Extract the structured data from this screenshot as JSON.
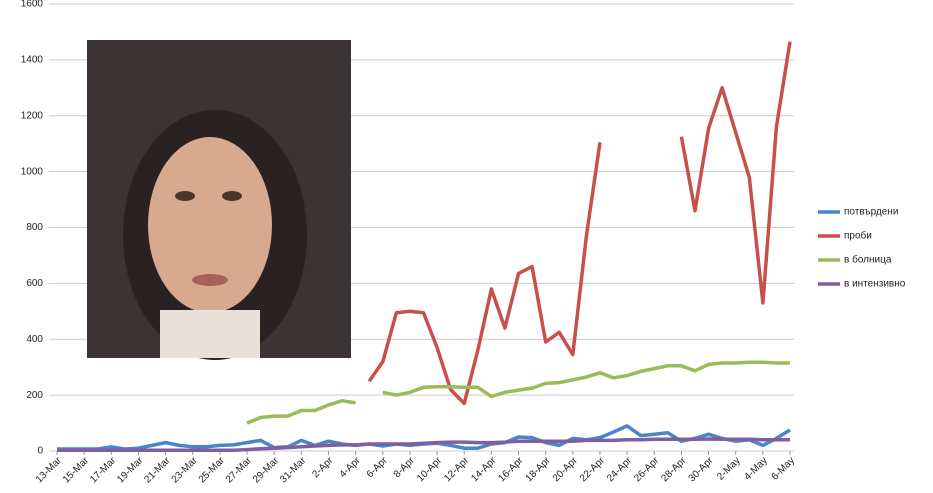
{
  "chart_data": {
    "type": "line",
    "categories": [
      "13-Mar",
      null,
      "15-Mar",
      null,
      "17-Mar",
      null,
      "19-Mar",
      null,
      "21-Mar",
      null,
      "23-Mar",
      null,
      "25-Mar",
      null,
      "27-Mar",
      null,
      "29-Mar",
      null,
      "31-Mar",
      null,
      "2-Apr",
      null,
      "4-Apr",
      null,
      "6-Apr",
      null,
      "8-Apr",
      null,
      "10-Apr",
      null,
      "12-Apr",
      null,
      "14-Apr",
      null,
      "16-Apr",
      null,
      "18-Apr",
      null,
      "20-Apr",
      null,
      "22-Apr",
      null,
      "24-Apr",
      null,
      "26-Apr",
      null,
      "28-Apr",
      null,
      "30-Apr",
      null,
      "2-May",
      null,
      "4-May",
      null,
      "6-May"
    ],
    "series": [
      {
        "name": "потвърдени",
        "color": "#4a86c5",
        "values": [
          7,
          7,
          7,
          7,
          15,
          7,
          10,
          20,
          30,
          20,
          15,
          15,
          20,
          22,
          30,
          38,
          12,
          15,
          38,
          20,
          35,
          25,
          20,
          25,
          18,
          25,
          20,
          25,
          28,
          20,
          10,
          10,
          25,
          30,
          50,
          48,
          30,
          20,
          45,
          40,
          48,
          68,
          90,
          55,
          60,
          65,
          35,
          45,
          60,
          45,
          35,
          40,
          20,
          45,
          75
        ]
      },
      {
        "name": "проби",
        "color": "#c8504b",
        "values": [
          null,
          null,
          null,
          null,
          null,
          null,
          null,
          null,
          null,
          null,
          null,
          null,
          null,
          null,
          null,
          null,
          null,
          null,
          null,
          null,
          null,
          null,
          null,
          250,
          320,
          495,
          500,
          495,
          370,
          220,
          170,
          360,
          580,
          440,
          635,
          660,
          390,
          425,
          345,
          770,
          1105,
          null,
          null,
          null,
          null,
          null,
          1125,
          860,
          1155,
          1300,
          1140,
          980,
          530,
          1160,
          1465
        ]
      },
      {
        "name": "в болница",
        "color": "#9bbb59",
        "values": [
          null,
          null,
          null,
          null,
          null,
          null,
          null,
          null,
          null,
          null,
          null,
          null,
          null,
          null,
          100,
          120,
          125,
          125,
          145,
          145,
          165,
          180,
          172,
          null,
          210,
          200,
          210,
          228,
          230,
          230,
          228,
          228,
          195,
          210,
          218,
          225,
          242,
          245,
          255,
          265,
          280,
          262,
          270,
          285,
          295,
          305,
          305,
          287,
          310,
          315,
          315,
          318,
          318,
          315,
          315
        ]
      },
      {
        "name": "в интензивно",
        "color": "#7e5fa2",
        "values": [
          3,
          3,
          3,
          3,
          3,
          3,
          3,
          3,
          3,
          3,
          3,
          3,
          3,
          3,
          5,
          8,
          10,
          12,
          15,
          18,
          20,
          22,
          22,
          25,
          25,
          25,
          25,
          28,
          30,
          32,
          32,
          30,
          30,
          32,
          35,
          35,
          35,
          35,
          35,
          38,
          38,
          38,
          40,
          40,
          42,
          42,
          42,
          42,
          43,
          42,
          42,
          42,
          40,
          40,
          40
        ]
      }
    ],
    "ylim": [
      0,
      1600
    ],
    "yticks": [
      0,
      200,
      400,
      600,
      800,
      1000,
      1200,
      1400,
      1600
    ],
    "legend": "right"
  }
}
